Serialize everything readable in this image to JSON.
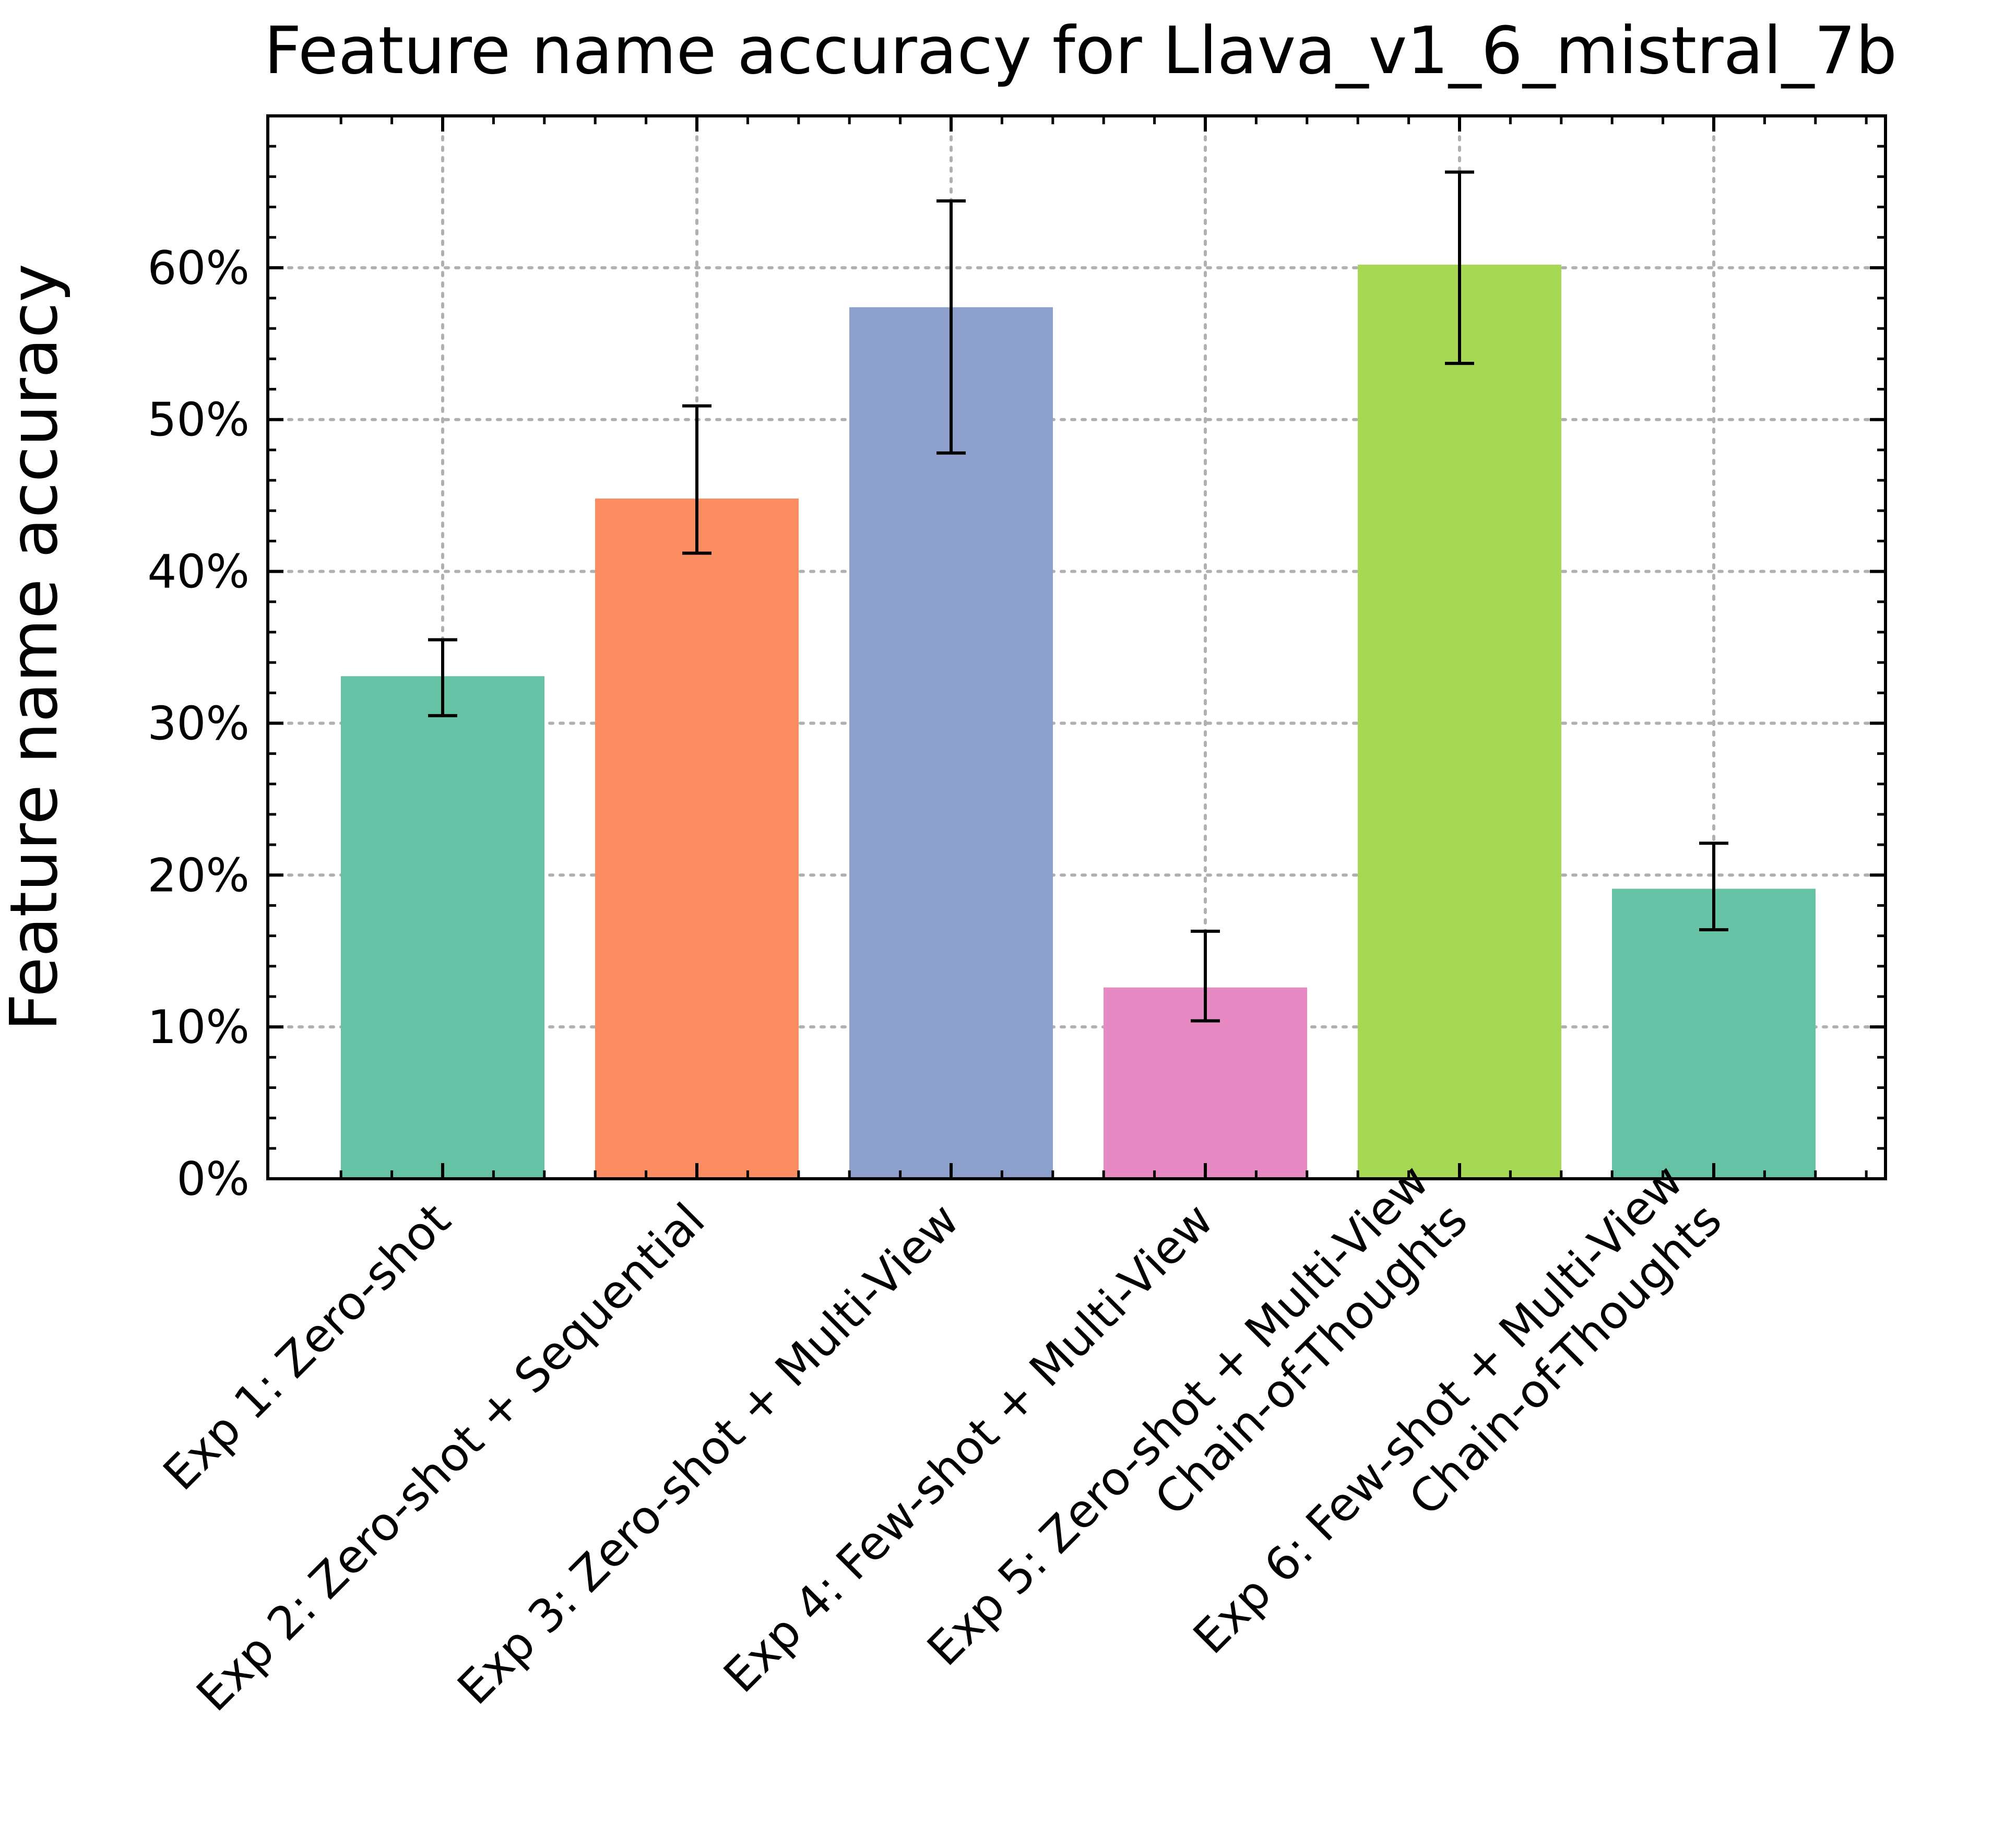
{
  "chart_data": {
    "type": "bar",
    "title": "Feature name accuracy for Llava_v1_6_mistral_7b",
    "xlabel": "",
    "ylabel": "Feature name accuracy",
    "ylim": [
      0,
      70
    ],
    "yticks": [
      0,
      10,
      20,
      30,
      40,
      50,
      60
    ],
    "ytick_labels": [
      "0%",
      "10%",
      "20%",
      "30%",
      "40%",
      "50%",
      "60%"
    ],
    "grid": true,
    "categories": [
      [
        "Exp 1: Zero-shot"
      ],
      [
        "Exp 2: Zero-shot + Sequential"
      ],
      [
        "Exp 3: Zero-shot + Multi-View"
      ],
      [
        "Exp 4: Few-shot + Multi-View"
      ],
      [
        "Exp 5: Zero-shot + Multi-View",
        "Chain-of-Thoughts"
      ],
      [
        "Exp 6: Few-shot + Multi-View",
        "Chain-of-Thoughts"
      ]
    ],
    "values": [
      33.1,
      44.8,
      57.4,
      12.6,
      60.2,
      19.1
    ],
    "error_low": [
      30.5,
      41.2,
      47.8,
      10.4,
      53.7,
      16.4
    ],
    "error_high": [
      35.5,
      50.9,
      64.4,
      16.3,
      66.3,
      22.1
    ],
    "colors": [
      "#66c2a5",
      "#fc8d62",
      "#8da0cb",
      "#e78ac3",
      "#a6d854",
      "#66c2a5"
    ]
  }
}
